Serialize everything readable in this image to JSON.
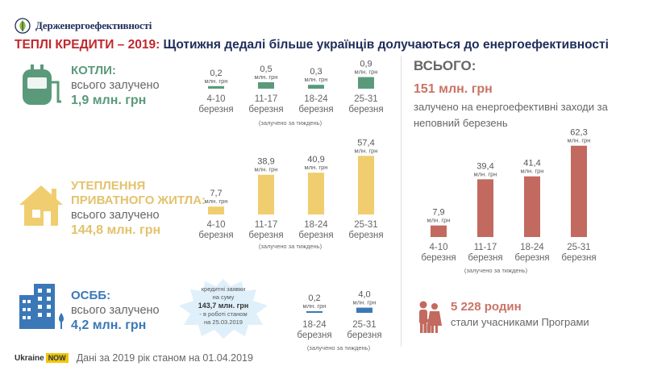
{
  "logo_text": "Держенергоефективності",
  "headline": {
    "part1": "ТЕПЛІ КРЕДИТИ – 2019:",
    "part2": " Щотижня дедалі більше українців долучаються до енергоефективності"
  },
  "unit": "млн. грн",
  "caption": "(залучено за тиждень)",
  "boilers": {
    "title": "КОТЛИ:",
    "subtitle": "всього залучено",
    "total": "1,9 млн. грн"
  },
  "insulation": {
    "title1": "УТЕПЛЕННЯ",
    "title2": "ПРИВАТНОГО ЖИТЛА:",
    "subtitle": "всього залучено",
    "total": "144,8 млн. грн"
  },
  "osbb": {
    "title": "ОСББ:",
    "subtitle": "всього залучено",
    "total": "4,2 млн. грн",
    "note_line1": "кредитні заявки",
    "note_line2": "на суму",
    "note_amount": "143,7 млн. грн",
    "note_line3": "- в роботі станом",
    "note_line4": "на 25.03.2019"
  },
  "total": {
    "title": "ВСЬОГО:",
    "amount": "151 млн. грн",
    "desc": "залучено на енергоефективні заходи за неповний березень"
  },
  "families": {
    "count": "5 228 родин",
    "text": "стали учасниками Програми"
  },
  "footer": {
    "brand1": "Ukraine",
    "brand2": "NOW",
    "note": "Дані за 2019 рік станом на 01.04.2019"
  },
  "colors": {
    "boilers": "#5a9a7a",
    "insulation": "#f0cd6e",
    "osbb": "#3a78b8",
    "total": "#c26a5f"
  },
  "chart_data": [
    {
      "id": "boilers",
      "type": "bar",
      "categories": [
        [
          "4-10",
          "березня"
        ],
        [
          "11-17",
          "березня"
        ],
        [
          "18-24",
          "березня"
        ],
        [
          "25-31",
          "березня"
        ]
      ],
      "values": [
        0.2,
        0.5,
        0.3,
        0.9
      ],
      "labels": [
        "0,2",
        "0,5",
        "0,3",
        "0,9"
      ],
      "unit": "млн. грн",
      "ylim": [
        0,
        1.0
      ]
    },
    {
      "id": "insulation",
      "type": "bar",
      "categories": [
        [
          "4-10",
          "березня"
        ],
        [
          "11-17",
          "березня"
        ],
        [
          "18-24",
          "березня"
        ],
        [
          "25-31",
          "березня"
        ]
      ],
      "values": [
        7.7,
        38.9,
        40.9,
        57.4
      ],
      "labels": [
        "7,7",
        "38,9",
        "40,9",
        "57,4"
      ],
      "unit": "млн. грн",
      "ylim": [
        0,
        60
      ]
    },
    {
      "id": "osbb",
      "type": "bar",
      "categories": [
        [
          "18-24",
          "березня"
        ],
        [
          "25-31",
          "березня"
        ]
      ],
      "values": [
        0.2,
        4.0
      ],
      "labels": [
        "0,2",
        "4,0"
      ],
      "unit": "млн. грн",
      "ylim": [
        0,
        20
      ]
    },
    {
      "id": "total",
      "type": "bar",
      "categories": [
        [
          "4-10",
          "березня"
        ],
        [
          "11-17",
          "березня"
        ],
        [
          "18-24",
          "березня"
        ],
        [
          "25-31",
          "березня"
        ]
      ],
      "values": [
        7.9,
        39.4,
        41.4,
        62.3
      ],
      "labels": [
        "7,9",
        "39,4",
        "41,4",
        "62,3"
      ],
      "unit": "млн. грн",
      "ylim": [
        0,
        66
      ]
    }
  ]
}
